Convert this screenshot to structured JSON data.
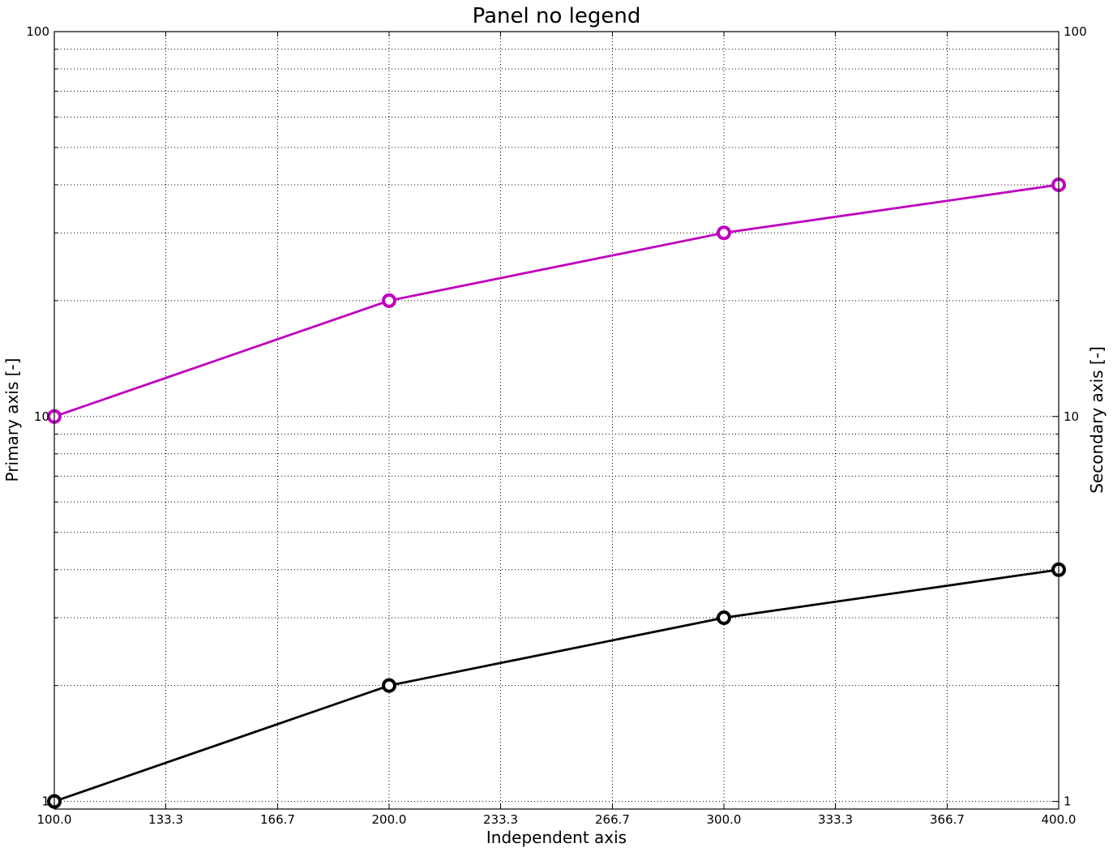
{
  "chart_data": {
    "type": "line",
    "title": "Panel no legend",
    "xlabel": "Independent axis",
    "ylabel": "Primary axis [-]",
    "y2label": "Secondary axis [-]",
    "xlim": [
      100,
      400
    ],
    "ylim": [
      0.9554,
      100
    ],
    "yscale": "log",
    "grid": true,
    "legend": "none",
    "x_ticks": [
      "100.0",
      "133.3",
      "166.7",
      "200.0",
      "233.3",
      "266.7",
      "300.0",
      "333.3",
      "366.7",
      "400.0"
    ],
    "y_ticks": [
      "1",
      "10",
      "100"
    ],
    "y2_ticks": [
      "1",
      "10",
      "100"
    ],
    "x": [
      100,
      200,
      300,
      400
    ],
    "series": [
      {
        "values": [
          10,
          20,
          30,
          40
        ],
        "color": "#bf00bf",
        "marker": "circle-open"
      },
      {
        "values": [
          1,
          2,
          3,
          4
        ],
        "color": "#000000",
        "marker": "circle-open"
      }
    ]
  }
}
